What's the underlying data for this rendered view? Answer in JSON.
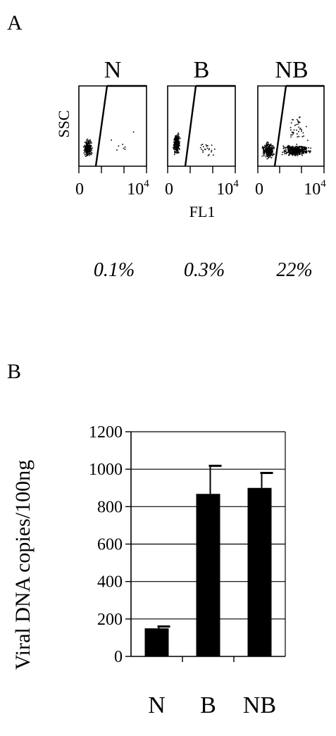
{
  "panel_a": {
    "label": "A",
    "y_axis_label": "SSC",
    "x_axis_label": "FL1",
    "x_tick_min": "0",
    "x_tick_max": "10",
    "x_tick_max_exp": "4",
    "plots": [
      {
        "title": "N",
        "percent": "0.1%"
      },
      {
        "title": "B",
        "percent": "0.3%"
      },
      {
        "title": "NB",
        "percent": "22%"
      }
    ]
  },
  "chart_data": {
    "type": "bar",
    "panel_label": "B",
    "categories": [
      "N",
      "B",
      "NB"
    ],
    "values": [
      150,
      868,
      900
    ],
    "errors": [
      10,
      150,
      80
    ],
    "xlabel": "",
    "ylabel": "Viral DNA copies/100ng",
    "ylim": [
      0,
      1200
    ],
    "yticks": [
      0,
      200,
      400,
      600,
      800,
      1000,
      1200
    ],
    "grid": true,
    "bar_color": "#000000"
  }
}
